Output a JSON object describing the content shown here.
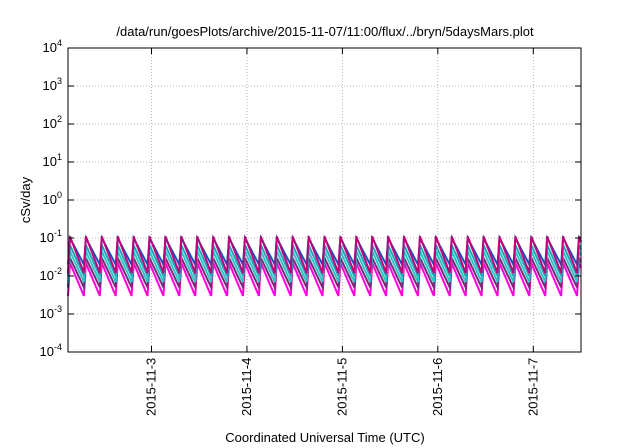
{
  "chart_data": {
    "type": "line",
    "title": "/data/run/goesPlots/archive/2015-11-07/11:00/flux/../bryn/5daysMars.plot",
    "xlabel": "Coordinated Universal Time (UTC)",
    "ylabel": "cSv/day",
    "yscale": "log",
    "ylim": [
      0.0001,
      10000
    ],
    "xlim": [
      "2015-11-02T03:00",
      "2015-11-07T12:00"
    ],
    "grid": true,
    "legend": "none",
    "y_ticks": [
      {
        "base": "10",
        "exp": "-4",
        "value": 0.0001
      },
      {
        "base": "10",
        "exp": "-3",
        "value": 0.001
      },
      {
        "base": "10",
        "exp": "-2",
        "value": 0.01
      },
      {
        "base": "10",
        "exp": "-1",
        "value": 0.1
      },
      {
        "base": "10",
        "exp": "0",
        "value": 1
      },
      {
        "base": "10",
        "exp": "1",
        "value": 10
      },
      {
        "base": "10",
        "exp": "2",
        "value": 100
      },
      {
        "base": "10",
        "exp": "3",
        "value": 1000
      },
      {
        "base": "10",
        "exp": "4",
        "value": 10000
      }
    ],
    "x_ticks": [
      {
        "label": "2015-11-3",
        "value": "2015-11-03T00:00"
      },
      {
        "label": "2015-11-4",
        "value": "2015-11-04T00:00"
      },
      {
        "label": "2015-11-5",
        "value": "2015-11-05T00:00"
      },
      {
        "label": "2015-11-6",
        "value": "2015-11-06T00:00"
      },
      {
        "label": "2015-11-7",
        "value": "2015-11-07T00:00"
      }
    ],
    "pattern": {
      "description": "sawtooth: sharp rise then decay, repeating",
      "period_hours": 4,
      "series_peaks_and_troughs": [
        {
          "color": "#c0007a",
          "peak": 0.11,
          "trough": 0.012
        },
        {
          "color": "#1f4fbf",
          "peak": 0.1,
          "trough": 0.02
        },
        {
          "color": "#1aa8b8",
          "peak": 0.065,
          "trough": 0.01
        },
        {
          "color": "#2ec4c4",
          "peak": 0.045,
          "trough": 0.007
        },
        {
          "color": "#7a2a7a",
          "peak": 0.03,
          "trough": 0.005
        },
        {
          "color": "#ff00dd",
          "peak": 0.022,
          "trough": 0.003
        }
      ]
    }
  }
}
